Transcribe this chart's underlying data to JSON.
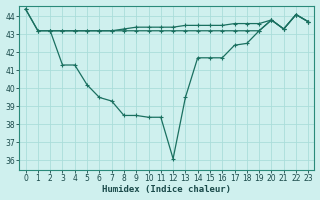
{
  "xlabel": "Humidex (Indice chaleur)",
  "background_color": "#cff0ee",
  "grid_color": "#aaddda",
  "line_color": "#1a7060",
  "xlim": [
    -0.5,
    23.5
  ],
  "ylim": [
    35.5,
    44.6
  ],
  "xticks": [
    0,
    1,
    2,
    3,
    4,
    5,
    6,
    7,
    8,
    9,
    10,
    11,
    12,
    13,
    14,
    15,
    16,
    17,
    18,
    19,
    20,
    21,
    22,
    23
  ],
  "yticks": [
    36,
    37,
    38,
    39,
    40,
    41,
    42,
    43,
    44
  ],
  "line1_x": [
    0,
    1,
    2,
    3,
    4,
    5,
    6,
    7,
    8,
    9,
    10,
    11,
    12,
    13,
    14,
    15,
    16,
    17,
    18,
    19,
    20,
    21,
    22,
    23
  ],
  "line1_y": [
    44.4,
    43.2,
    43.2,
    43.2,
    43.2,
    43.2,
    43.2,
    43.2,
    43.2,
    43.2,
    43.2,
    43.2,
    43.2,
    43.2,
    43.2,
    43.2,
    43.2,
    43.2,
    43.2,
    43.2,
    43.8,
    43.3,
    44.1,
    43.7
  ],
  "line2_x": [
    0,
    1,
    2,
    3,
    4,
    5,
    6,
    7,
    8,
    9,
    10,
    11,
    12,
    13,
    14,
    15,
    16,
    17,
    18,
    19,
    20,
    21,
    22,
    23
  ],
  "line2_y": [
    44.4,
    43.2,
    43.2,
    41.3,
    41.3,
    40.2,
    39.5,
    39.3,
    38.5,
    38.5,
    38.4,
    38.4,
    36.1,
    39.5,
    41.7,
    41.7,
    41.7,
    42.4,
    42.5,
    43.2,
    43.8,
    43.3,
    44.1,
    43.7
  ],
  "line3_x": [
    2,
    3,
    4,
    5,
    6,
    7,
    8,
    9,
    10,
    11,
    12,
    13,
    14,
    15,
    16,
    17,
    18,
    19,
    20,
    21,
    22,
    23
  ],
  "line3_y": [
    43.2,
    43.2,
    43.2,
    43.2,
    43.2,
    43.2,
    43.3,
    43.4,
    43.4,
    43.4,
    43.4,
    43.5,
    43.5,
    43.5,
    43.5,
    43.6,
    43.6,
    43.6,
    43.8,
    43.3,
    44.1,
    43.7
  ],
  "marker_size": 2.5,
  "linewidth": 0.9,
  "tick_fontsize": 5.5,
  "label_fontsize": 6.5
}
